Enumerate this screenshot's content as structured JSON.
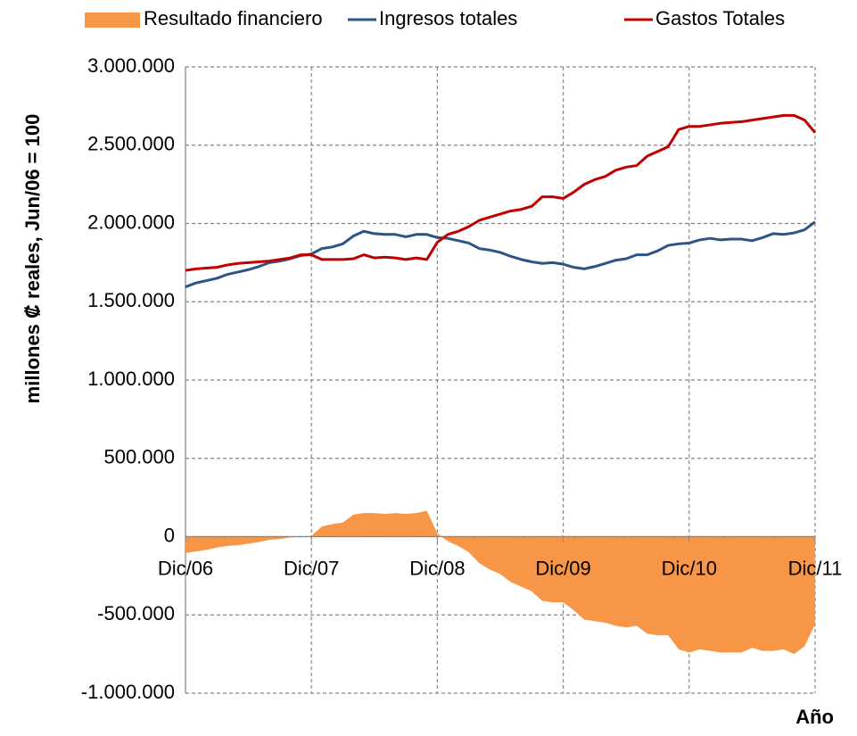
{
  "chart_data": {
    "type": "line",
    "y_label": "millones ₡ reales, Jun/06 = 100",
    "x_label": "Año",
    "categories": [
      "Dic/06",
      null,
      null,
      null,
      null,
      null,
      null,
      null,
      null,
      null,
      null,
      null,
      "Dic/07",
      null,
      null,
      null,
      null,
      null,
      null,
      null,
      null,
      null,
      null,
      null,
      "Dic/08",
      null,
      null,
      null,
      null,
      null,
      null,
      null,
      null,
      null,
      null,
      null,
      "Dic/09",
      null,
      null,
      null,
      null,
      null,
      null,
      null,
      null,
      null,
      null,
      null,
      "Dic/10",
      null,
      null,
      null,
      null,
      null,
      null,
      null,
      null,
      null,
      null,
      null,
      "Dic/11"
    ],
    "series": [
      {
        "name": "Resultado financiero",
        "kind": "area",
        "color": "#f79646",
        "values": [
          -105000,
          -95000,
          -85000,
          -70000,
          -60000,
          -55000,
          -45000,
          -35000,
          -20000,
          -15000,
          -5000,
          0,
          5000,
          65000,
          80000,
          90000,
          140000,
          150000,
          150000,
          145000,
          150000,
          145000,
          150000,
          165000,
          20000,
          -30000,
          -60000,
          -100000,
          -170000,
          -210000,
          -240000,
          -290000,
          -320000,
          -350000,
          -410000,
          -420000,
          -420000,
          -470000,
          -530000,
          -540000,
          -550000,
          -570000,
          -580000,
          -570000,
          -620000,
          -630000,
          -630000,
          -720000,
          -740000,
          -720000,
          -730000,
          -740000,
          -740000,
          -740000,
          -710000,
          -730000,
          -730000,
          -720000,
          -750000,
          -700000,
          -560000
        ]
      },
      {
        "name": "Ingresos totales",
        "kind": "line",
        "color": "#2c5486",
        "values": [
          1595000,
          1620000,
          1635000,
          1650000,
          1675000,
          1690000,
          1705000,
          1725000,
          1750000,
          1760000,
          1775000,
          1795000,
          1805000,
          1840000,
          1850000,
          1870000,
          1920000,
          1950000,
          1935000,
          1930000,
          1930000,
          1915000,
          1930000,
          1930000,
          1910000,
          1905000,
          1890000,
          1875000,
          1840000,
          1830000,
          1815000,
          1790000,
          1770000,
          1755000,
          1745000,
          1750000,
          1740000,
          1720000,
          1710000,
          1725000,
          1745000,
          1765000,
          1775000,
          1800000,
          1800000,
          1825000,
          1860000,
          1870000,
          1875000,
          1895000,
          1905000,
          1895000,
          1900000,
          1900000,
          1890000,
          1910000,
          1935000,
          1930000,
          1940000,
          1960000,
          2010000
        ]
      },
      {
        "name": "Gastos Totales",
        "kind": "line",
        "color": "#c00000",
        "values": [
          1700000,
          1710000,
          1715000,
          1720000,
          1735000,
          1745000,
          1750000,
          1755000,
          1760000,
          1770000,
          1780000,
          1800000,
          1800000,
          1770000,
          1770000,
          1770000,
          1775000,
          1800000,
          1780000,
          1785000,
          1780000,
          1770000,
          1780000,
          1770000,
          1880000,
          1930000,
          1950000,
          1980000,
          2020000,
          2040000,
          2060000,
          2080000,
          2090000,
          2110000,
          2170000,
          2170000,
          2160000,
          2200000,
          2250000,
          2280000,
          2300000,
          2340000,
          2360000,
          2370000,
          2430000,
          2460000,
          2490000,
          2600000,
          2620000,
          2620000,
          2630000,
          2640000,
          2645000,
          2650000,
          2660000,
          2670000,
          2680000,
          2690000,
          2690000,
          2660000,
          2580000
        ]
      }
    ],
    "ylim": [
      -1000000,
      3000000
    ],
    "yticks": [
      {
        "value": -1000000,
        "label": "-1.000.000"
      },
      {
        "value": -500000,
        "label": "-500.000"
      },
      0,
      {
        "value": 500000,
        "label": "500.000"
      },
      {
        "value": 1000000,
        "label": "1.000.000"
      },
      {
        "value": 1500000,
        "label": "1.500.000"
      },
      {
        "value": 2000000,
        "label": "2.000.000"
      },
      {
        "value": 2500000,
        "label": "2.500.000"
      },
      {
        "value": 3000000,
        "label": "3.000.000"
      }
    ],
    "grid": true,
    "legend": "top"
  }
}
